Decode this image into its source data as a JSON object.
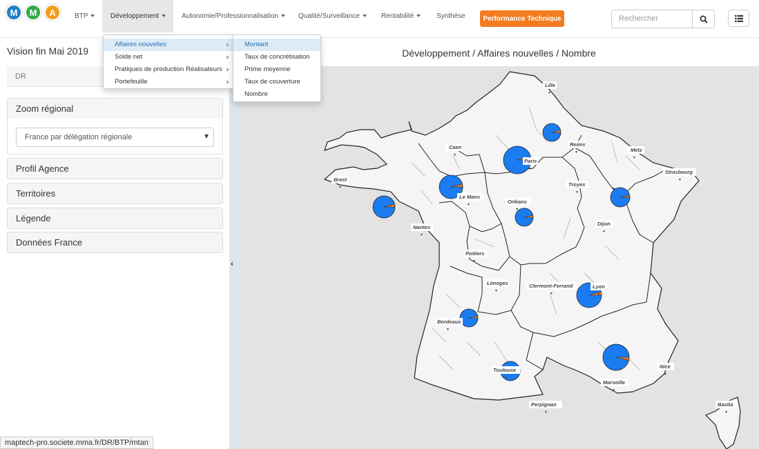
{
  "navbar": {
    "logo_letters": [
      "M",
      "M",
      "A"
    ],
    "logo_colors": [
      "#1f7fc7",
      "#38a84a",
      "#f39c1b"
    ],
    "items": [
      {
        "label": "BTP"
      },
      {
        "label": "Développement"
      },
      {
        "label": "Autonomie/Professionnalisation"
      },
      {
        "label": "Qualité/Surveillance"
      },
      {
        "label": "Rentabilité"
      },
      {
        "label": "Synthèse"
      }
    ],
    "perf_button": "Performance Technique",
    "perf_color": "#f47c20",
    "search_placeholder": "Rechercher",
    "search_icon": "search-icon",
    "list_icon": "list-icon"
  },
  "dev_menu": {
    "items": [
      "Affaires nouvelles",
      "Solde net",
      "Pratiques de production Réalisateurs",
      "Portefeuille"
    ]
  },
  "sub_menu": {
    "items": [
      "Montant",
      "Taux de concrétisation",
      "Prime moyenne",
      "Taux de couverture",
      "Nombre"
    ]
  },
  "sidebar": {
    "vision": "Vision fin Mai 2019",
    "tab": "DR",
    "zoom_title": "Zoom régional",
    "zoom_select": "France par délégation régionale",
    "panels": [
      "Profil Agence",
      "Territoires",
      "Légende",
      "Données France"
    ]
  },
  "map": {
    "title": "Développement / Affaires nouvelles / Nombre",
    "pie_color": "#1a7cf0",
    "slice_color": "#f47c20",
    "cities": [
      "Lille",
      "Caen",
      "Reims",
      "Metz",
      "Paris",
      "Strasbourg",
      "Brest",
      "Le Mans",
      "Troyes",
      "Orléans",
      "Nantes",
      "Dijon",
      "Poitiers",
      "Limoges",
      "Clermont-Ferrand",
      "Lyon",
      "Bordeaux",
      "Toulouse",
      "Marseille",
      "Nice",
      "Perpignan",
      "Bastia"
    ]
  },
  "status_bar": {
    "url": "maptech-pro.societe.mma.fr/DR/BTP/mtan"
  }
}
